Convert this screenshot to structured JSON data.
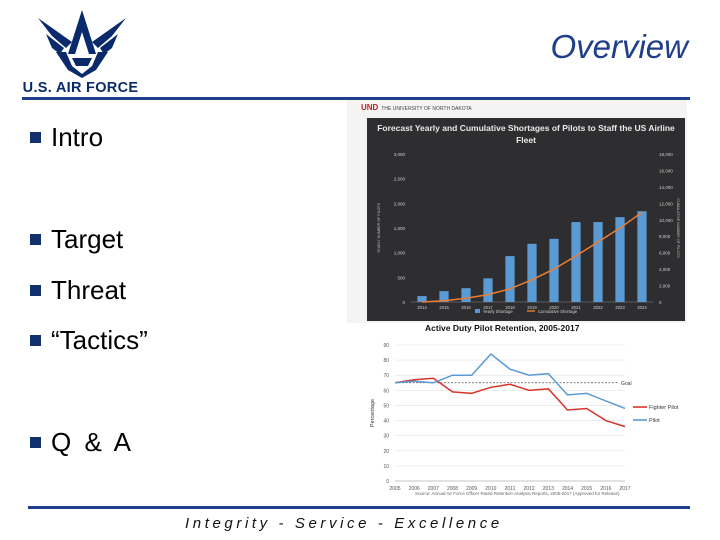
{
  "header": {
    "logo_text": "U.S. AIR FORCE",
    "title": "Overview"
  },
  "bullets": [
    "Intro",
    "Target",
    "Threat",
    "“Tactics”",
    "Q & A"
  ],
  "footer": "Integrity - Service - Excellence",
  "colors": {
    "brand_blue": "#1f3f8a",
    "bullet_square": "#13306e",
    "bar_blue": "#5b9bd5",
    "line_orange": "#ed7d31",
    "fighter_red": "#d9342b"
  },
  "chart_data": [
    {
      "type": "bar",
      "logo_text": "UND",
      "logo_subtext": "THE UNIVERSITY OF NORTH DAKOTA",
      "title": "Forecast Yearly and Cumulative Shortages of Pilots to Staff the US Airline Fleet",
      "categories": [
        "2014",
        "2015",
        "2016",
        "2017",
        "2018",
        "2019",
        "2020",
        "2021",
        "2022",
        "2023",
        "2024"
      ],
      "series": [
        {
          "name": "Yearly Shortage",
          "type": "bar",
          "axis": "left",
          "values": [
            120,
            220,
            280,
            480,
            930,
            1180,
            1280,
            1620,
            1620,
            1720,
            1840
          ]
        },
        {
          "name": "Cumulative Shortage",
          "type": "line",
          "axis": "right",
          "values": [
            0,
            150,
            450,
            900,
            1600,
            2700,
            4000,
            5600,
            7300,
            9000,
            10900
          ]
        }
      ],
      "y_left_ticks": [
        "0",
        "500",
        "1,000",
        "1,500",
        "2,000",
        "2,500",
        "3,000"
      ],
      "y_right_ticks": [
        "0",
        "2,000",
        "4,000",
        "6,000",
        "8,000",
        "10,000",
        "12,000",
        "14,000",
        "16,000",
        "18,000"
      ],
      "ylabel": "YEARLY NUMBER OF PILOTS",
      "y2label": "CUMULATIVE NUMBER OF PILOTS",
      "ylim": [
        0,
        3000
      ],
      "y2lim": [
        0,
        18000
      ],
      "legend": "bottom",
      "grid": false
    },
    {
      "type": "line",
      "title": "Active Duty Pilot Retention, 2005-2017",
      "x": [
        "2005",
        "2006",
        "2007",
        "2008",
        "2009",
        "2010",
        "2011",
        "2012",
        "2013",
        "2014",
        "2015",
        "2016",
        "2017"
      ],
      "series": [
        {
          "name": "Fighter Pilot",
          "values": [
            65,
            67,
            68,
            59,
            58,
            62,
            64,
            60,
            61,
            47,
            48,
            40,
            36
          ]
        },
        {
          "name": "Pilot",
          "values": [
            65,
            66,
            65,
            70,
            70,
            84,
            74,
            70,
            71,
            57,
            58,
            53,
            48
          ]
        }
      ],
      "goal_value": 65,
      "goal_label": "Goal",
      "ylabel": "Percentage",
      "y_ticks": [
        "0",
        "10",
        "20",
        "30",
        "40",
        "50",
        "60",
        "70",
        "80",
        "90"
      ],
      "ylim": [
        0,
        90
      ],
      "source": "Source: Annual Air Force Officer Rated Retention Analysis Reports, 2005-2017 (Approved for Release)",
      "legend": "right",
      "grid": true
    }
  ]
}
